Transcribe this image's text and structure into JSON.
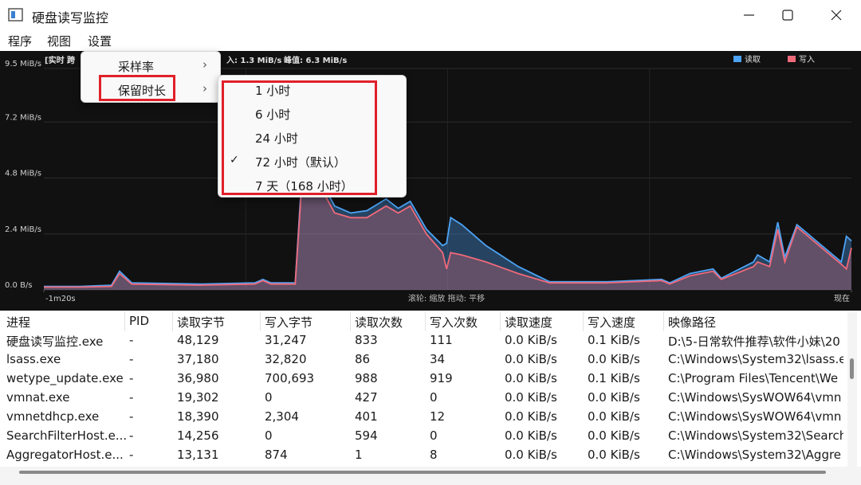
{
  "window": {
    "title": "硬盘读写监控"
  },
  "menubar": [
    "程序",
    "视图",
    "设置"
  ],
  "settings_menu": {
    "items": [
      "采样率",
      "保留时长"
    ]
  },
  "retention_menu": {
    "items": [
      "1 小时",
      "6 小时",
      "24 小时",
      "72 小时（默认）",
      "7 天（168 小时）"
    ],
    "checked": 3
  },
  "chart_data": {
    "type": "area",
    "status_left": "[实时 跨",
    "status_mid": "入: 1.3 MiB/s",
    "status_peak": "峰值: 6.3 MiB/s",
    "hint": "滚轮: 缩放   拖动: 平移",
    "x": [
      -80,
      -76.4,
      -73.3,
      -72.5,
      -71.3,
      -64.6,
      -59.1,
      -58.3,
      -57.5,
      -55.1,
      -54.5,
      -53.2,
      -51.2,
      -49.6,
      -48.0,
      -46.1,
      -44.9,
      -43.7,
      -42.1,
      -40.5,
      -40.1,
      -39.7,
      -38.6,
      -36.2,
      -33.0,
      -29.9,
      -24.3,
      -18.8,
      -18.0,
      -16.0,
      -13.7,
      -12.9,
      -9.7,
      -9.3,
      -8.1,
      -7.3,
      -6.6,
      -5.4,
      -1.0,
      -0.5,
      0
    ],
    "series": [
      {
        "name": "读取",
        "color": "#4da3f5",
        "values": [
          0.15,
          0.15,
          0.2,
          0.8,
          0.3,
          0.25,
          0.3,
          0.45,
          0.3,
          0.3,
          4.5,
          5.2,
          3.6,
          3.3,
          3.4,
          3.9,
          3.5,
          3.8,
          2.6,
          1.9,
          2.0,
          3.1,
          2.8,
          1.9,
          1.0,
          0.35,
          0.35,
          0.45,
          0.3,
          0.7,
          0.9,
          0.5,
          1.2,
          1.5,
          1.2,
          2.9,
          1.4,
          2.8,
          1.2,
          2.3,
          2.1
        ]
      },
      {
        "name": "写入",
        "color": "#f06a7a",
        "values": [
          0.12,
          0.12,
          0.15,
          0.7,
          0.25,
          0.2,
          0.25,
          0.4,
          0.25,
          0.25,
          4.2,
          4.9,
          3.3,
          3.1,
          3.1,
          3.6,
          3.3,
          3.6,
          2.4,
          1.6,
          0.9,
          1.6,
          1.5,
          1.2,
          0.7,
          0.3,
          0.3,
          0.4,
          0.25,
          0.6,
          0.8,
          0.45,
          1.0,
          1.2,
          1.0,
          2.6,
          1.2,
          2.7,
          1.1,
          0.9,
          1.8
        ]
      }
    ],
    "xlim": [
      -80,
      0
    ],
    "xticks": [
      {
        "value": -80,
        "label": "-1m20s"
      },
      {
        "value": 0,
        "label": "现在"
      }
    ],
    "ylim": [
      0,
      9.5
    ],
    "yticks": [
      {
        "value": 0,
        "label": "0.0 B/s"
      },
      {
        "value": 2.4,
        "label": "2.4 MiB/s"
      },
      {
        "value": 4.8,
        "label": "4.8 MiB/s"
      },
      {
        "value": 7.2,
        "label": "7.2 MiB/s"
      },
      {
        "value": 9.5,
        "label": "9.5 MiB/s"
      }
    ],
    "grid": true,
    "legend": "top-right"
  },
  "table": {
    "columns": [
      "进程",
      "PID",
      "读取字节",
      "写入字节",
      "读取次数",
      "写入次数",
      "读取速度",
      "写入速度",
      "映像路径"
    ],
    "rows": [
      [
        "硬盘读写监控.exe",
        "-",
        "48,129",
        "31,247",
        "833",
        "111",
        "0.0 KiB/s",
        "0.1 KiB/s",
        "D:\\5-日常软件推荐\\软件小妹\\20"
      ],
      [
        "lsass.exe",
        "-",
        "37,180",
        "32,820",
        "86",
        "34",
        "0.0 KiB/s",
        "0.0 KiB/s",
        "C:\\Windows\\System32\\lsass.e"
      ],
      [
        "wetype_update.exe",
        "-",
        "36,980",
        "700,693",
        "988",
        "919",
        "0.0 KiB/s",
        "0.1 KiB/s",
        "C:\\Program Files\\Tencent\\We"
      ],
      [
        "vmnat.exe",
        "-",
        "19,302",
        "0",
        "427",
        "0",
        "0.0 KiB/s",
        "0.0 KiB/s",
        "C:\\Windows\\SysWOW64\\vmn"
      ],
      [
        "vmnetdhcp.exe",
        "-",
        "18,390",
        "2,304",
        "401",
        "12",
        "0.0 KiB/s",
        "0.0 KiB/s",
        "C:\\Windows\\SysWOW64\\vmn"
      ],
      [
        "SearchFilterHost.e...",
        "-",
        "14,256",
        "0",
        "594",
        "0",
        "0.0 KiB/s",
        "0.0 KiB/s",
        "C:\\Windows\\System32\\Search"
      ],
      [
        "AggregatorHost.e...",
        "-",
        "13,131",
        "874",
        "1",
        "8",
        "0.0 KiB/s",
        "0.0 KiB/s",
        "C:\\Windows\\System32\\Aggre"
      ]
    ]
  }
}
